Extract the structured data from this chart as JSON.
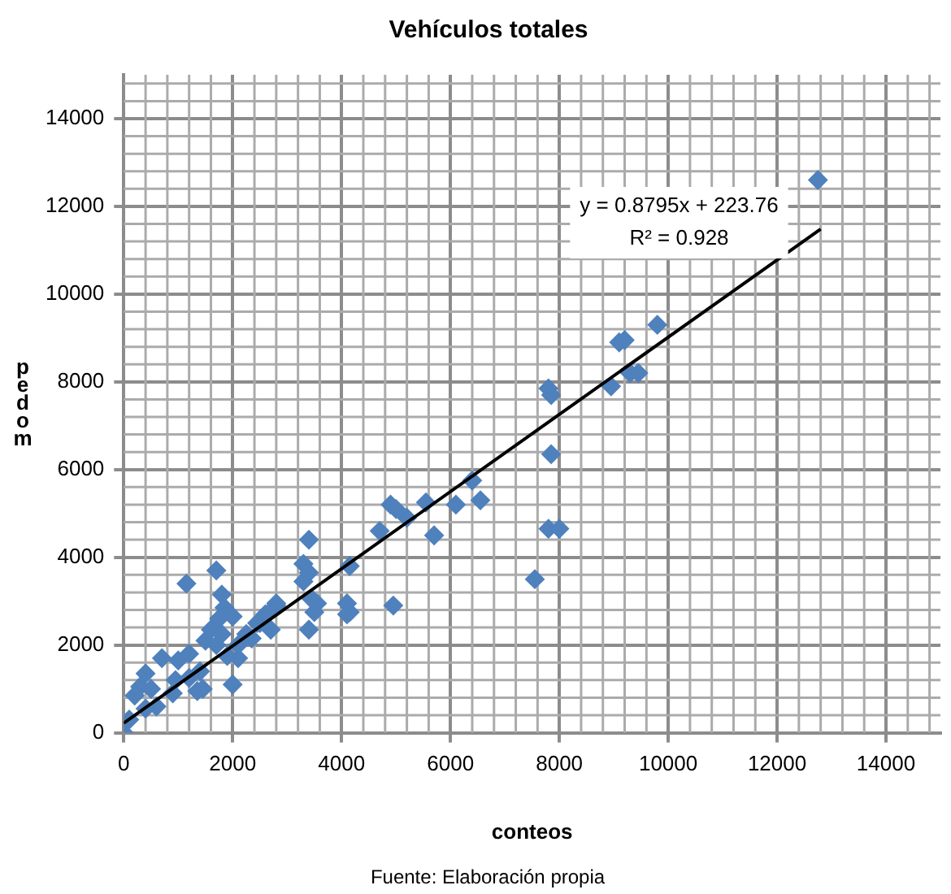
{
  "chart_data": {
    "type": "scatter",
    "title": "Vehículos totales",
    "xlabel": "conteos",
    "ylabel": "pedom",
    "annotations": [
      "y = 0.8795x + 223.76",
      "R² = 0.928",
      "Fuente: Elaboración propia"
    ],
    "xlim": [
      0,
      15000
    ],
    "ylim": [
      0,
      15000
    ],
    "xticks": [
      0,
      2000,
      4000,
      6000,
      8000,
      10000,
      12000,
      14000
    ],
    "yticks": [
      0,
      2000,
      4000,
      6000,
      8000,
      10000,
      12000,
      14000
    ],
    "grid": true,
    "marker": "diamond",
    "series": [
      {
        "color": "#4f81bd",
        "x": [
          12750,
          9800,
          9100,
          9200,
          8950,
          9300,
          9450,
          7800,
          7850,
          7850,
          7800,
          8000,
          7550,
          6400,
          6550,
          6100,
          5550,
          5700,
          4900,
          5000,
          5200,
          4700,
          4950,
          4150,
          4100,
          4150,
          3400,
          3300,
          3400,
          3300,
          3550,
          3500,
          3400,
          2800,
          2700,
          2500,
          2350,
          1150,
          1700,
          1800,
          2000,
          2100,
          700,
          1450,
          3450,
          4100,
          1850,
          2000,
          1750,
          2600,
          2450,
          2250,
          1600,
          1800,
          1500,
          2100,
          1900,
          1700,
          1200,
          1000,
          1400,
          1200,
          900,
          400,
          300,
          200,
          500,
          600,
          400,
          100,
          0,
          950,
          1350,
          2800
        ],
        "values": [
          12600,
          9300,
          8900,
          8950,
          7900,
          8200,
          8200,
          7850,
          7700,
          6350,
          4650,
          4650,
          3500,
          5750,
          5300,
          5200,
          5250,
          4500,
          5200,
          5100,
          4900,
          4600,
          2900,
          3800,
          2950,
          2750,
          4400,
          3850,
          3650,
          3450,
          2950,
          2750,
          2350,
          2900,
          2350,
          2500,
          2150,
          3400,
          3700,
          3150,
          1100,
          1700,
          1700,
          1000,
          3050,
          2700,
          2850,
          2650,
          2600,
          2700,
          2500,
          2250,
          2350,
          2250,
          2100,
          2000,
          1750,
          2000,
          1800,
          1650,
          1400,
          1250,
          900,
          1350,
          1050,
          850,
          1000,
          600,
          550,
          300,
          0,
          1200,
          950,
          2950
        ]
      },
      {
        "type": "line",
        "marker": "none",
        "color": "#000000",
        "x": [
          0,
          12800
        ],
        "values": [
          220,
          11480
        ]
      }
    ]
  }
}
